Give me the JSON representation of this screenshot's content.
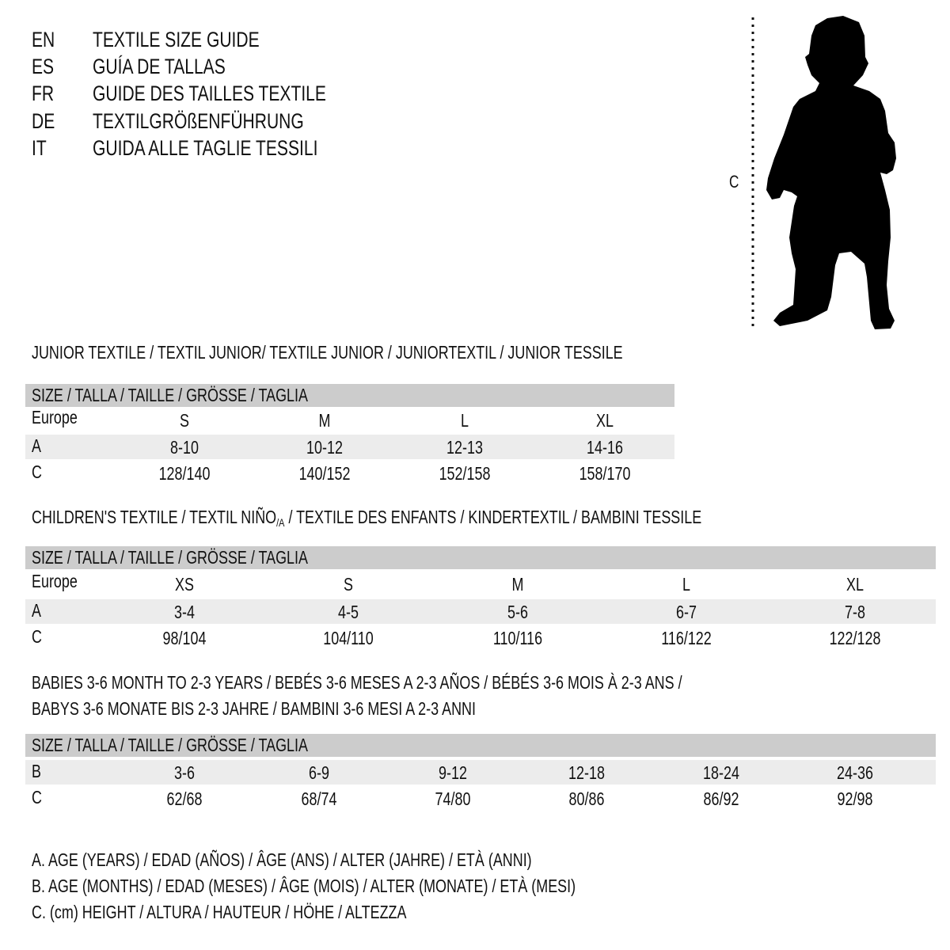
{
  "languages": [
    {
      "code": "EN",
      "title": "TEXTILE SIZE GUIDE"
    },
    {
      "code": "ES",
      "title": "GUÍA DE TALLAS"
    },
    {
      "code": "FR",
      "title": "GUIDE DES TAILLES TEXTILE"
    },
    {
      "code": "DE",
      "title": "TEXTILGRÖßENFÜHRUNG"
    },
    {
      "code": "IT",
      "title": "GUIDA ALLE TAGLIE TESSILI"
    }
  ],
  "figure": {
    "label": "C",
    "icon": "child-silhouette-icon"
  },
  "size_header": "SIZE / TALLA / TAILLE / GRÖSSE / TAGLIA",
  "sections": [
    {
      "heading": "JUNIOR TEXTILE / TEXTIL JUNIOR/ TEXTILE JUNIOR / JUNIORTEXTIL / JUNIOR TESSILE",
      "rows": [
        {
          "label": "Europe",
          "values": [
            "S",
            "M",
            "L",
            "XL"
          ]
        },
        {
          "label": "A",
          "values": [
            "8-10",
            "10-12",
            "12-13",
            "14-16"
          ]
        },
        {
          "label": "C",
          "values": [
            "128/140",
            "140/152",
            "152/158",
            "158/170"
          ]
        }
      ]
    },
    {
      "heading_parts": [
        "CHILDREN'S TEXTILE / TEXTIL NIÑO",
        "/A",
        " / TEXTILE DES ENFANTS / KINDERTEXTIL / BAMBINI TESSILE"
      ],
      "rows": [
        {
          "label": "Europe",
          "values": [
            "XS",
            "S",
            "M",
            "L",
            "XL"
          ]
        },
        {
          "label": "A",
          "values": [
            "3-4",
            "4-5",
            "5-6",
            "6-7",
            "7-8"
          ]
        },
        {
          "label": "C",
          "values": [
            "98/104",
            "104/110",
            "110/116",
            "116/122",
            "122/128"
          ]
        }
      ]
    },
    {
      "heading_lines": [
        "BABIES 3-6 MONTH TO 2-3 YEARS / BEBÉS 3-6 MESES A 2-3 AÑOS / BÉBÉS 3-6 MOIS À 2-3 ANS /",
        "BABYS 3-6 MONATE BIS 2-3 JAHRE / BAMBINI 3-6 MESI A 2-3 ANNI"
      ],
      "rows": [
        {
          "label": "B",
          "values": [
            "3-6",
            "6-9",
            "9-12",
            "12-18",
            "18-24",
            "24-36"
          ]
        },
        {
          "label": "C",
          "values": [
            "62/68",
            "68/74",
            "74/80",
            "80/86",
            "86/92",
            "92/98"
          ]
        }
      ]
    }
  ],
  "legend": [
    "A. AGE (YEARS) / EDAD (AÑOS) / ÂGE (ANS) / ALTER (JAHRE) / ETÀ (ANNI)",
    "B. AGE (MONTHS) / EDAD (MESES) / ÂGE (MOIS) / ALTER (MONATE) / ETÀ (MESI)",
    "C. (cm) HEIGHT / ALTURA / HAUTEUR / HÖHE / ALTEZZA"
  ],
  "colors": {
    "header_band": "#cccccc",
    "alt_row": "#ececec",
    "text": "#111111"
  }
}
